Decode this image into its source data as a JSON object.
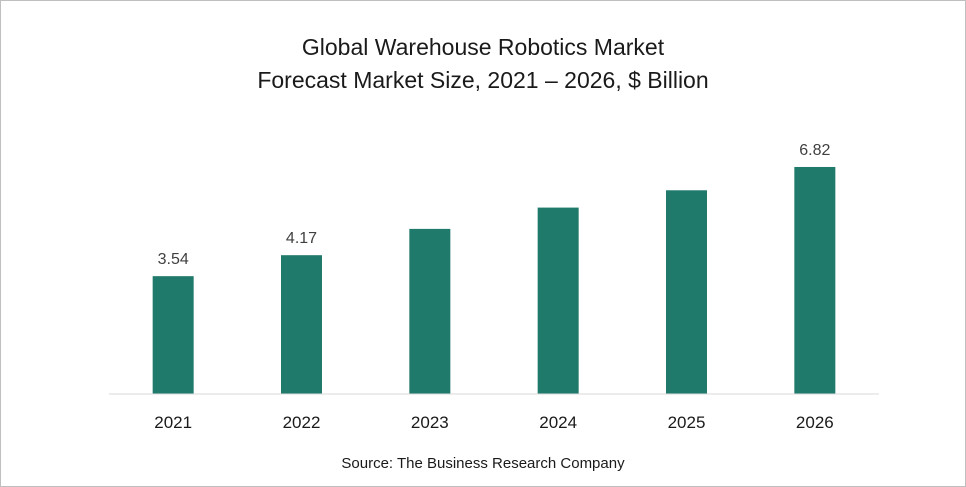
{
  "chart_data": {
    "type": "bar",
    "title": "Global Warehouse Robotics Market",
    "subtitle": "Forecast Market Size, 2021 – 2026, $ Billion",
    "categories": [
      "2021",
      "2022",
      "2023",
      "2024",
      "2025",
      "2026"
    ],
    "values": [
      3.54,
      4.17,
      4.96,
      5.6,
      6.12,
      6.82
    ],
    "data_labels": [
      "3.54",
      "4.17",
      "",
      "",
      "",
      "6.82"
    ],
    "ylim": [
      0,
      7.3
    ],
    "xlabel": "",
    "ylabel": "",
    "grid": false,
    "legend": "none",
    "colors": {
      "bar": "#1f7a6b",
      "axis": "#d9d9d9",
      "text": "#1a1a1a",
      "label": "#404040"
    }
  },
  "source": "Source: The Business Research Company"
}
